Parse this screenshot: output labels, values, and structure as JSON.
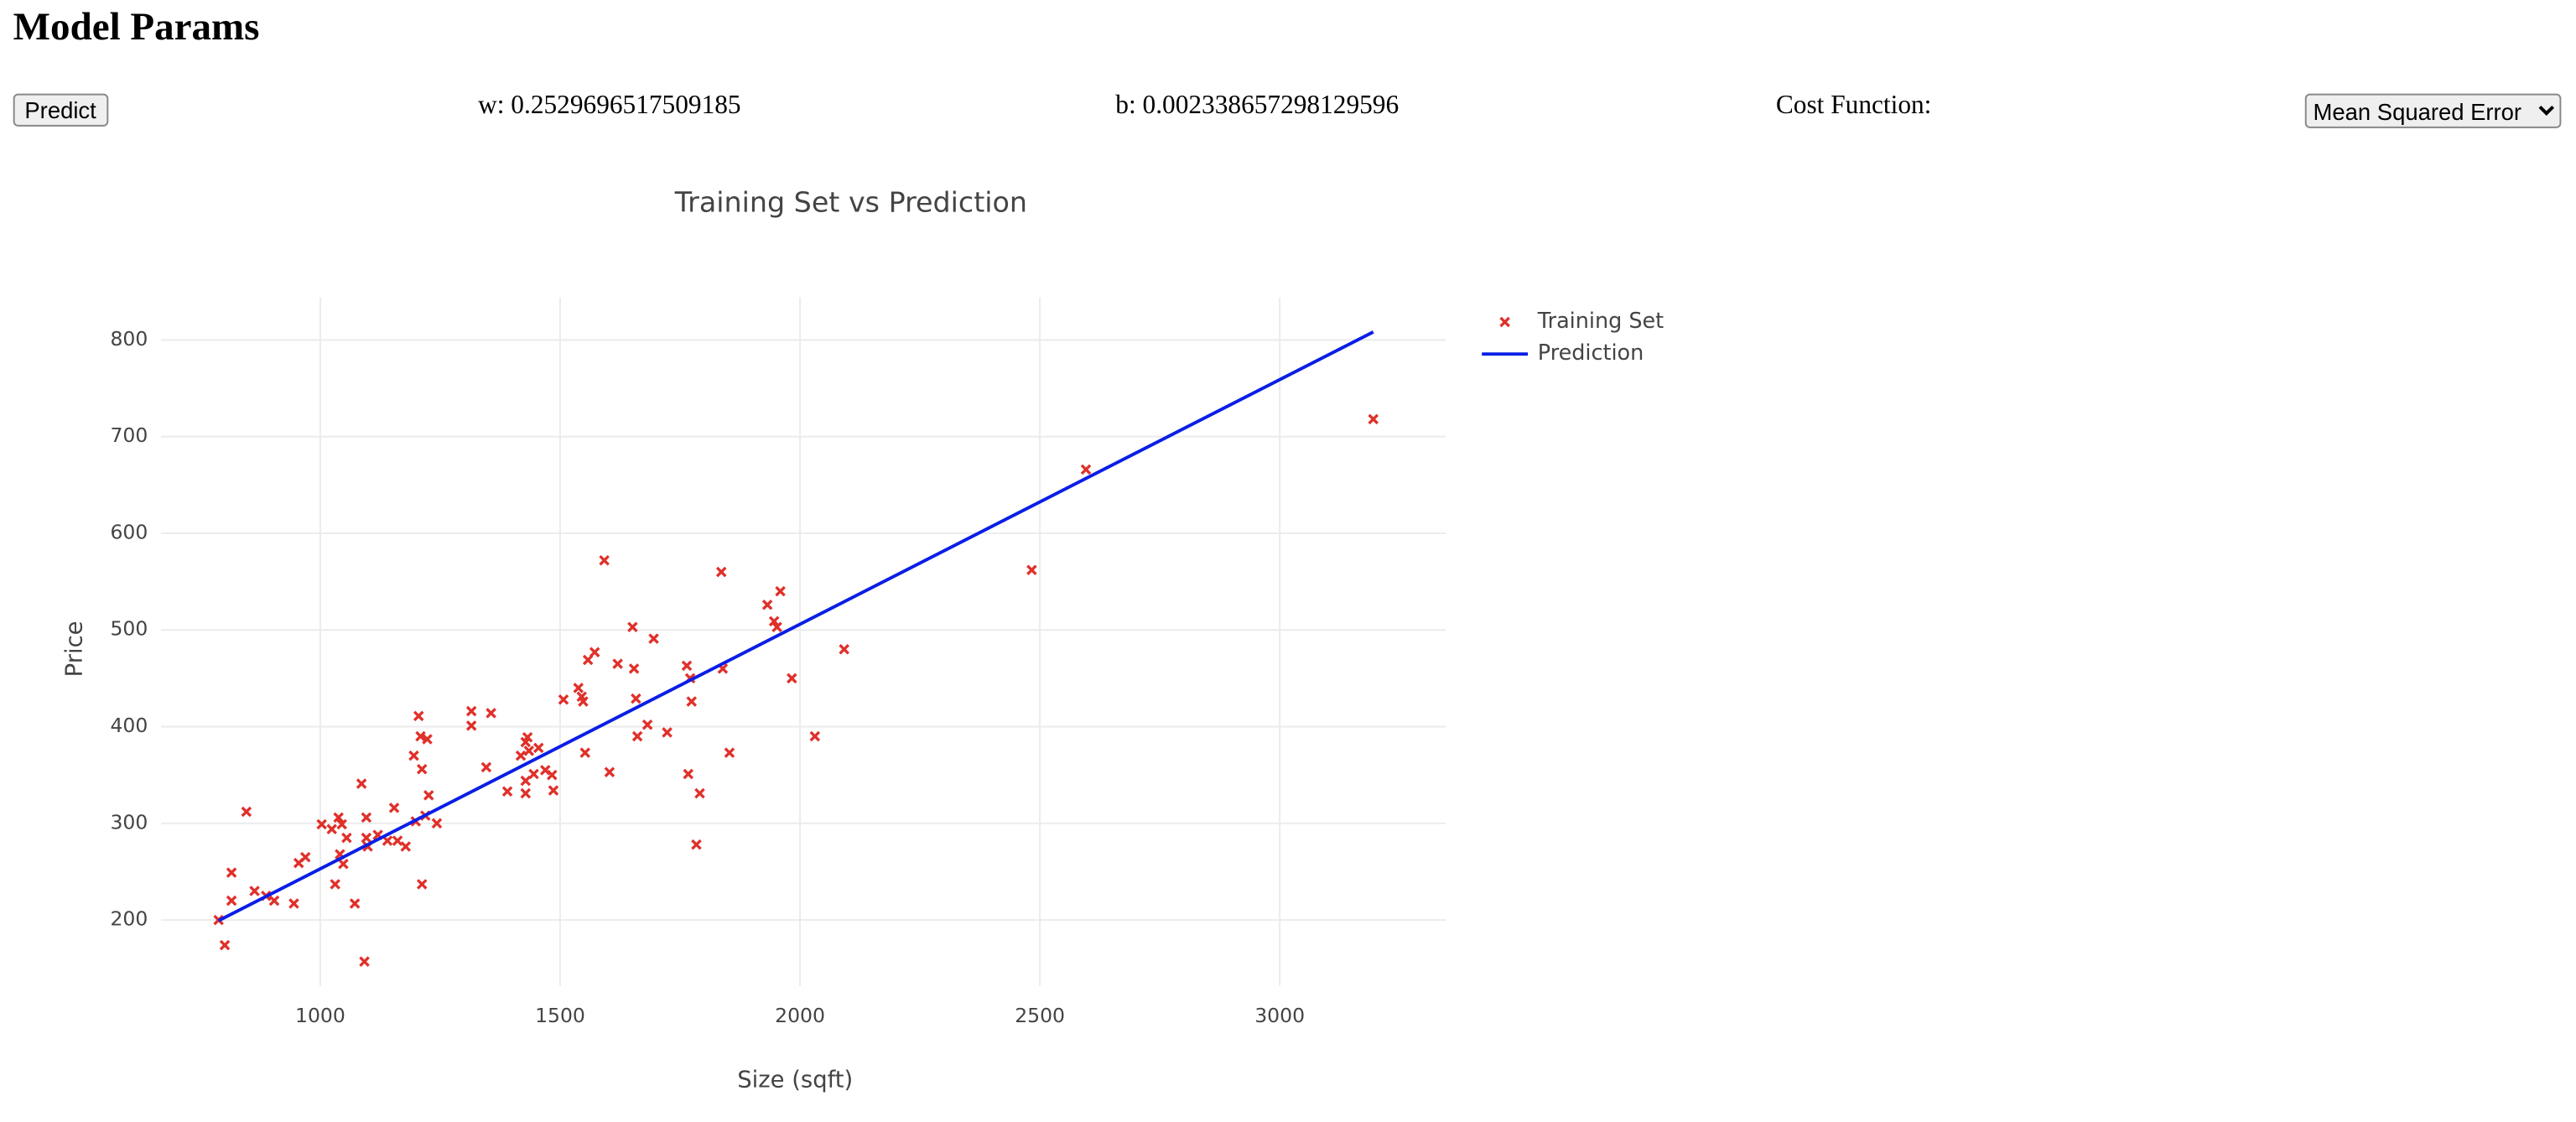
{
  "header": {
    "title": "Model Params"
  },
  "controls": {
    "button": "Predict",
    "w": "w: 0.2529696517509185",
    "b": "b: 0.002338657298129596",
    "cost_label": "Cost Function:",
    "cost_select": "Mean Squared Error"
  },
  "chart_data": {
    "type": "scatter",
    "title": "Training Set vs Prediction",
    "xlabel": "Size (sqft)",
    "ylabel": "Price",
    "xlim": [
      668,
      3346
    ],
    "ylim": [
      132,
      844
    ],
    "xticks": [
      1000,
      1500,
      2000,
      2500,
      3000
    ],
    "yticks": [
      200,
      300,
      400,
      500,
      600,
      700,
      800
    ],
    "grid": true,
    "legend": "right",
    "series": [
      {
        "name": "Training Set",
        "type": "scatter",
        "color": "#e0302a",
        "x": [
          788,
          801,
          815,
          815,
          846,
          863,
          887,
          904,
          945,
          955,
          969,
          1003,
          1024,
          1031,
          1038,
          1041,
          1045,
          1048,
          1055,
          1072,
          1086,
          1092,
          1096,
          1096,
          1099,
          1120,
          1140,
          1154,
          1161,
          1178,
          1195,
          1199,
          1205,
          1209,
          1212,
          1212,
          1219,
          1223,
          1226,
          1243,
          1315,
          1315,
          1346,
          1356,
          1390,
          1418,
          1428,
          1428,
          1428,
          1432,
          1435,
          1445,
          1455,
          1469,
          1483,
          1486,
          1507,
          1538,
          1545,
          1548,
          1552,
          1558,
          1572,
          1592,
          1603,
          1620,
          1651,
          1654,
          1658,
          1661,
          1682,
          1695,
          1723,
          1764,
          1767,
          1771,
          1774,
          1784,
          1791,
          1836,
          1839,
          1853,
          1932,
          1946,
          1952,
          1959,
          1983,
          2031,
          2092,
          2483,
          2596,
          3195
        ],
        "values": [
          200,
          174,
          249,
          220,
          312,
          230,
          225,
          220,
          217,
          259,
          265,
          299,
          294,
          237,
          306,
          268,
          299,
          258,
          285,
          217,
          341,
          157,
          306,
          285,
          276,
          288,
          282,
          316,
          282,
          276,
          370,
          302,
          411,
          390,
          356,
          237,
          308,
          387,
          329,
          300,
          416,
          401,
          358,
          414,
          333,
          370,
          384,
          344,
          331,
          389,
          375,
          351,
          378,
          355,
          350,
          334,
          428,
          440,
          431,
          426,
          373,
          469,
          477,
          572,
          353,
          465,
          503,
          460,
          429,
          390,
          402,
          491,
          394,
          463,
          351,
          450,
          426,
          278,
          331,
          560,
          460,
          373,
          526,
          509,
          503,
          540,
          450,
          390,
          480,
          562,
          666,
          718
        ]
      },
      {
        "name": "Prediction",
        "type": "line",
        "color": "#0a1ee6",
        "x": [
          788,
          3195
        ],
        "values": [
          199.34,
          808.25
        ]
      }
    ]
  }
}
